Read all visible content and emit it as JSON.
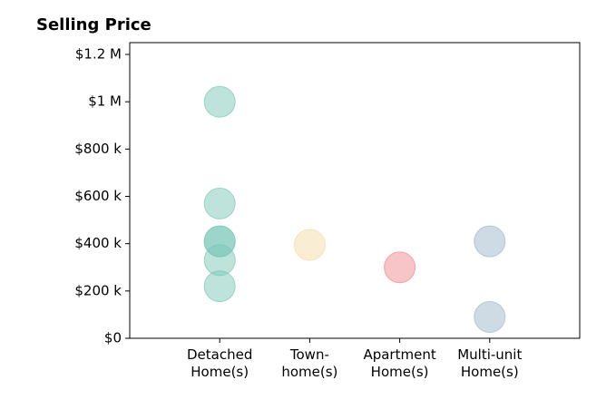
{
  "chart_data": {
    "type": "strip",
    "title": "Selling Price",
    "categories": [
      "Detached\nHome(s)",
      "Town-\nhome(s)",
      "Apartment\nHome(s)",
      "Multi-unit\nHome(s)"
    ],
    "values": [
      [
        1000000,
        570000,
        410000,
        410000,
        330000,
        220000
      ],
      [
        395000
      ],
      [
        300000
      ],
      [
        410000,
        90000
      ]
    ],
    "colors": [
      "#7cc8b8",
      "#f3dca8",
      "#ef8a8f",
      "#9db7cb"
    ],
    "xlim": [
      -1,
      4
    ],
    "ylim": [
      0,
      1250000
    ],
    "yticks": [
      {
        "value": 0,
        "label": "$0"
      },
      {
        "value": 200000,
        "label": "$200 k"
      },
      {
        "value": 400000,
        "label": "$400 k"
      },
      {
        "value": 600000,
        "label": "$600 k"
      },
      {
        "value": 800000,
        "label": "$800 k"
      },
      {
        "value": 1000000,
        "label": "$1 M"
      },
      {
        "value": 1200000,
        "label": "$1.2 M"
      }
    ]
  }
}
